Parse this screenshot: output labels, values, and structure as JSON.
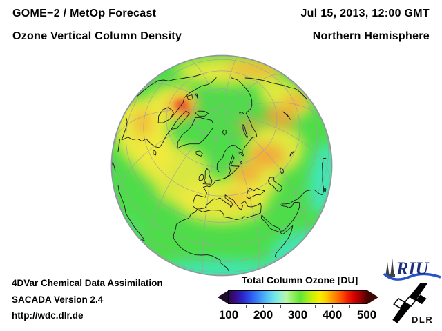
{
  "header": {
    "title_line1": "GOME−2 / MetOp Forecast",
    "title_line2": "Ozone Vertical Column Density",
    "datetime": "Jul 15, 2013, 12:00 GMT",
    "region": "Northern Hemisphere"
  },
  "footer": {
    "line1": "4DVar Chemical Data Assimilation",
    "line2": "SACADA Version 2.4",
    "line3": "http://wdc.dlr.de"
  },
  "colorbar": {
    "title": "Total Column Ozone [DU]",
    "unit": "DU",
    "min": 100,
    "max": 500,
    "tick_labels": [
      "100",
      "200",
      "300",
      "400",
      "500"
    ],
    "minor_tick_count": 9,
    "left_arrow_color": "#1d0b2e",
    "right_arrow_color": "#3f0703",
    "gradient": [
      [
        "#30054e",
        0
      ],
      [
        "#3a0d8a",
        5
      ],
      [
        "#2a23c8",
        10
      ],
      [
        "#2d55f0",
        16
      ],
      [
        "#3b8cfa",
        22
      ],
      [
        "#54c2f5",
        28
      ],
      [
        "#6fe5e8",
        33
      ],
      [
        "#97f2cf",
        38
      ],
      [
        "#b8f7a6",
        42
      ],
      [
        "#8aef5a",
        47
      ],
      [
        "#5ee636",
        52
      ],
      [
        "#9eee1e",
        57
      ],
      [
        "#d8f000",
        62
      ],
      [
        "#f8ef00",
        66
      ],
      [
        "#ffc800",
        71
      ],
      [
        "#ff9000",
        76
      ],
      [
        "#ff5a00",
        81
      ],
      [
        "#f32000",
        86
      ],
      [
        "#d40000",
        91
      ],
      [
        "#a30000",
        95
      ],
      [
        "#570000",
        100
      ]
    ]
  },
  "logos": {
    "riu_text": "RIU",
    "dlr_text": "DLR"
  },
  "globe": {
    "description": "Orthographic globe centered on the Northern Hemisphere (Europe/Arctic view) showing total ozone column",
    "base_color": "#4fdc4b",
    "rim_color": "#9096a0",
    "graticule_color": "#a0a0a0",
    "coastline_color": "#1a1a1a"
  },
  "chart_data": {
    "type": "heatmap",
    "title": "Total Column Ozone [DU]",
    "subtitle": "GOME−2 / MetOp Forecast — Jul 15, 2013, 12:00 GMT",
    "projection": "orthographic, Northern Hemisphere (viewpoint ~61N 10E)",
    "colorbar_range": [
      100,
      500
    ],
    "colorbar_ticks": [
      100,
      200,
      300,
      400,
      500
    ],
    "legend_position": "bottom-center",
    "regions": [
      {
        "name": "Arctic basin near pole",
        "approx_value_DU": 310,
        "color": "green"
      },
      {
        "name": "Canadian Arctic Archipelago maximum",
        "approx_value_DU": 430,
        "color": "orange-red"
      },
      {
        "name": "North Atlantic / Europe mid-latitude band",
        "approx_value_DU": 355,
        "color": "yellow"
      },
      {
        "name": "Central Siberia / Lake Baikal patch",
        "approx_value_DU": 400,
        "color": "orange"
      },
      {
        "name": "West Siberia / Kazakhstan patch",
        "approx_value_DU": 395,
        "color": "orange"
      },
      {
        "name": "Subtropics (North Africa, Arabia, Atlantic)",
        "approx_value_DU": 300,
        "color": "green"
      },
      {
        "name": "Tropical limb, south and southeast edge",
        "approx_value_DU": 265,
        "color": "cyan"
      }
    ]
  }
}
